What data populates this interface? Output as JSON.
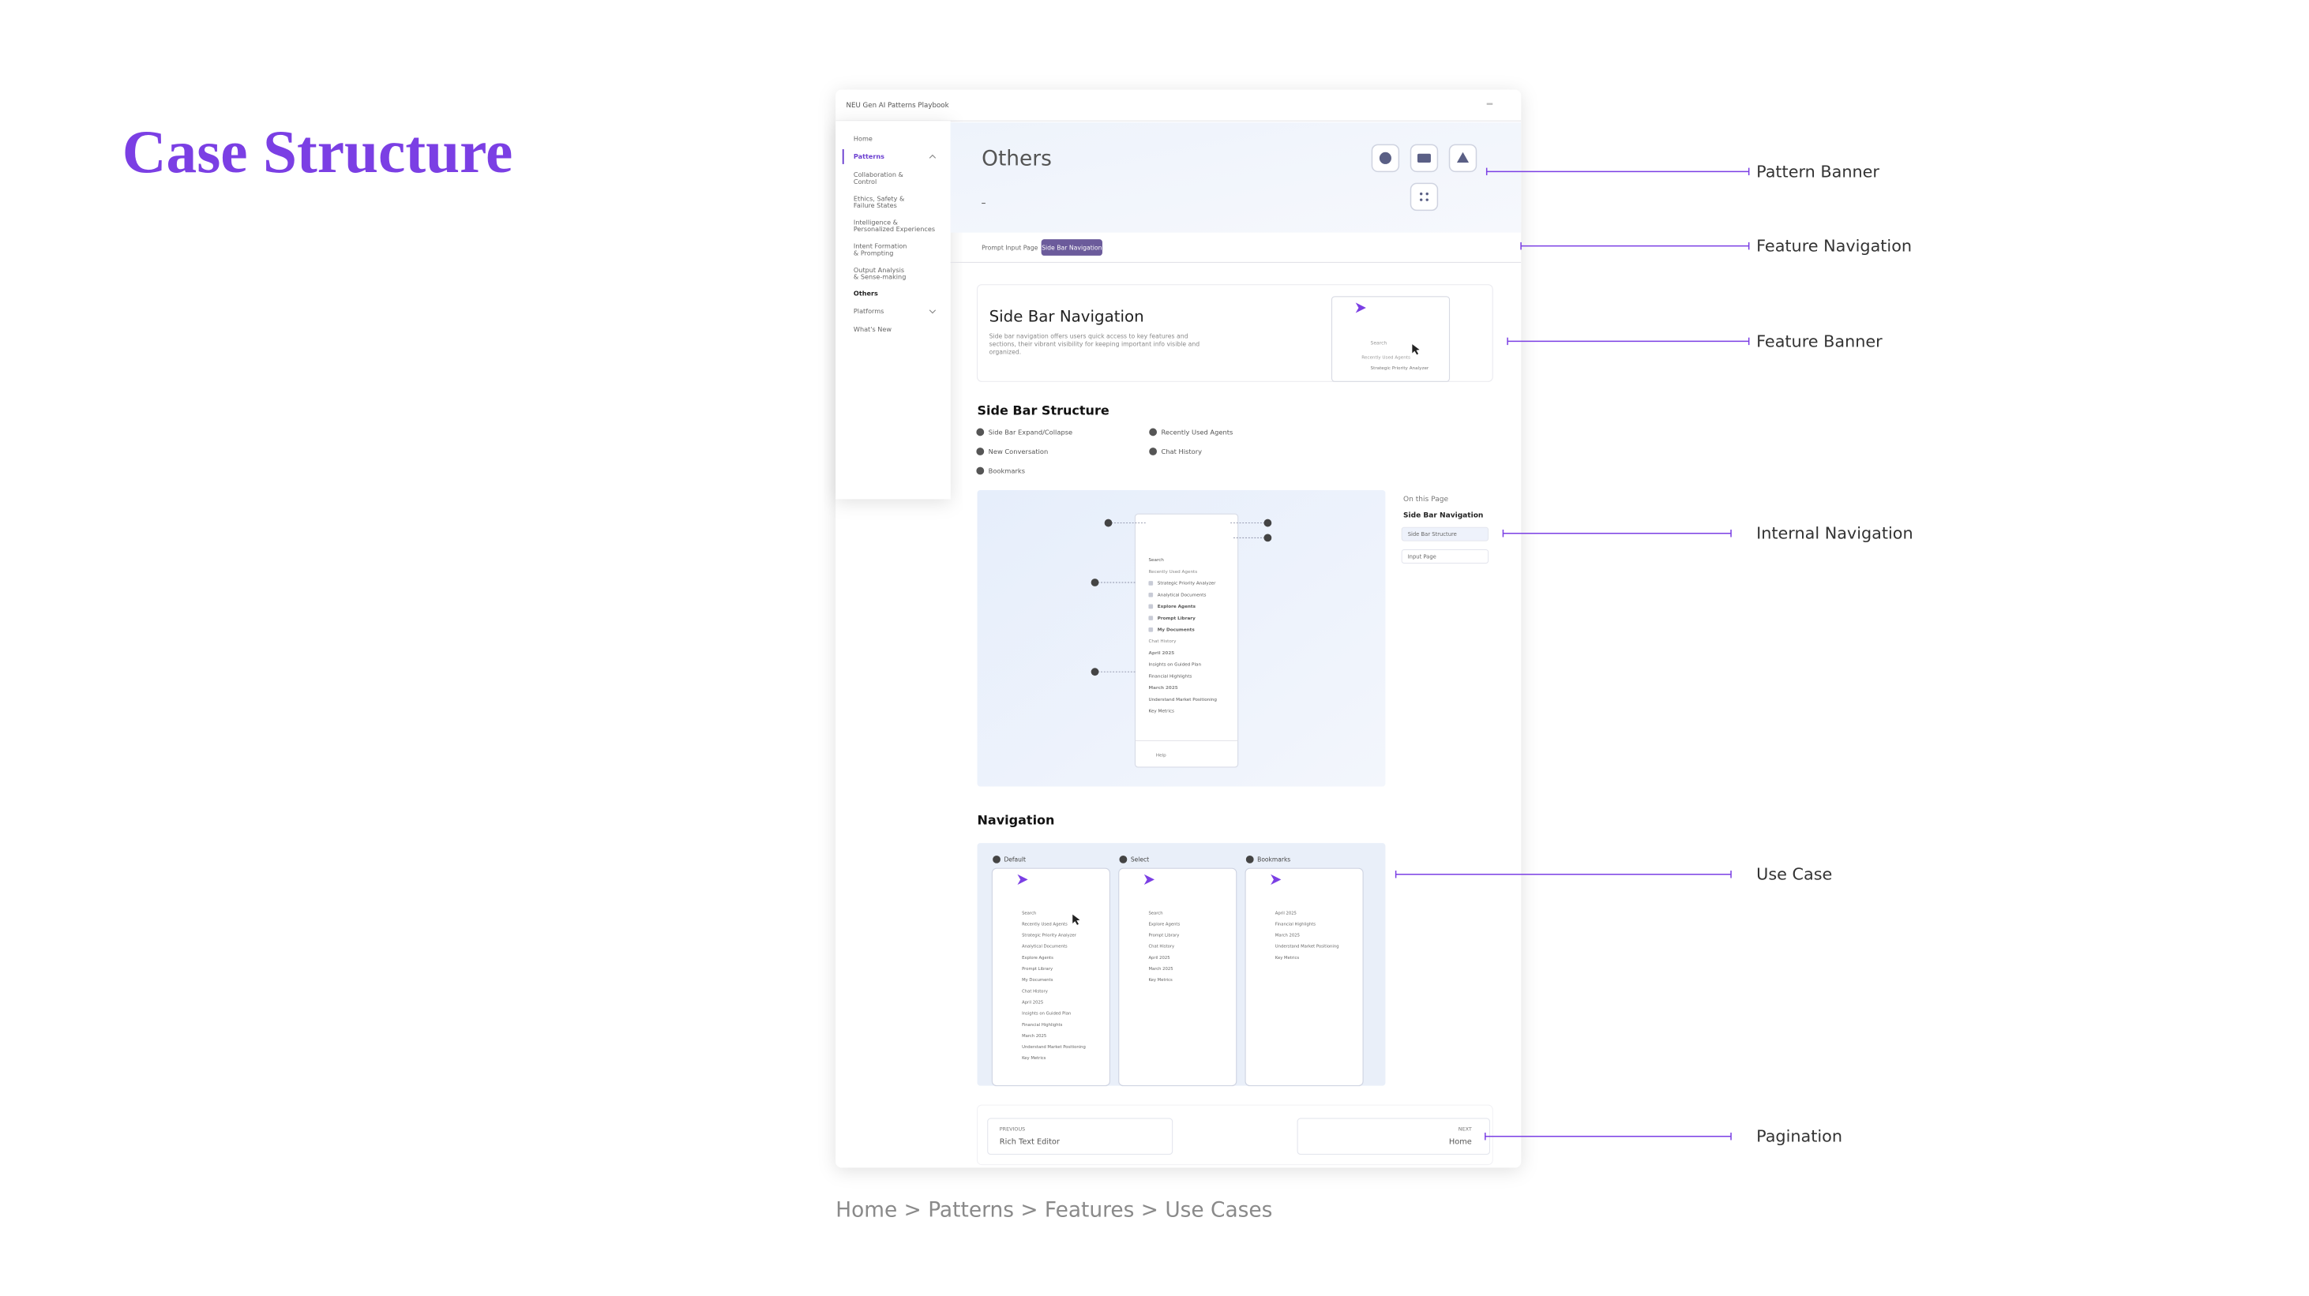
{
  "title": "Case Structure",
  "breadcrumb": "Home > Patterns > Features > Use Cases",
  "annotations": [
    "Pattern Banner",
    "Feature Navigation",
    "Feature Banner",
    "Internal Navigation",
    "Use Case",
    "Pagination"
  ],
  "app": {
    "header": "NEU Gen AI Patterns Playbook",
    "sidebar": [
      "Home",
      "Patterns",
      "Collaboration & Control",
      "Ethics, Safety & Failure States",
      "Intelligence & Personalized Experiences",
      "Intent Formation & Prompting",
      "Output Analysis & Sense-making",
      "Others",
      "Platforms",
      "What's New"
    ],
    "page_title": "Others",
    "tabs": [
      "Prompt Input Page",
      "Side Bar Navigation"
    ],
    "feature_banner": {
      "title": "Side Bar Navigation",
      "description": [
        "Side bar navigation offers users quick access to key features and",
        "sections, their vibrant visibility for keeping important info visible and",
        "organized."
      ]
    },
    "structure": {
      "title": "Side Bar Structure",
      "items": [
        "Side Bar Expand/Collapse",
        "New Conversation",
        "Bookmarks",
        "Recently Used Agents",
        "Chat History"
      ]
    },
    "on_this_page": {
      "title": "On this Page",
      "heading": "Side Bar Navigation",
      "links": [
        "Side Bar Structure",
        "Input Page"
      ]
    },
    "mockup": [
      "Search",
      "Recently Used Agents",
      "Strategic Priority Analyzer",
      "Analytical Documents",
      "Explore Agents",
      "Prompt Library",
      "My Documents",
      "Chat History",
      "April 2025",
      "Insights on Guided Plan",
      "Financial Highlights",
      "March 2025",
      "Understand Market Positioning",
      "Key Metrics",
      "Help"
    ],
    "navigation": {
      "title": "Navigation",
      "states": [
        "Default",
        "Select",
        "Bookmarks"
      ]
    },
    "pagination": {
      "previous_label": "PREVIOUS",
      "previous": "Rich Text Editor",
      "next_label": "NEXT",
      "next": "Home"
    }
  }
}
